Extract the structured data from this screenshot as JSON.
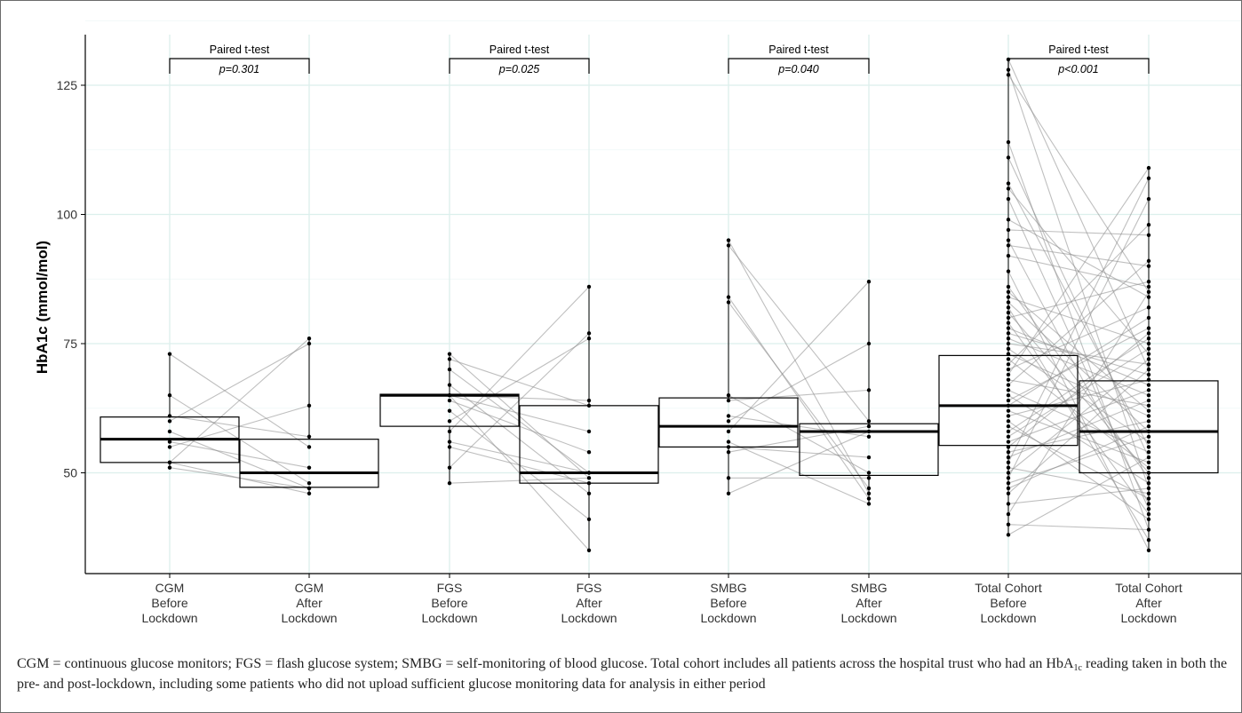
{
  "chart_data": {
    "type": "box",
    "ylabel": "HbA1c (mmol/mol)",
    "ylim": [
      30,
      135
    ],
    "yticks": [
      50,
      75,
      100,
      125
    ],
    "grid": true,
    "categories": [
      {
        "lines": [
          "CGM",
          "Before",
          "Lockdown"
        ]
      },
      {
        "lines": [
          "CGM",
          "After",
          "Lockdown"
        ]
      },
      {
        "lines": [
          "FGS",
          "Before",
          "Lockdown"
        ]
      },
      {
        "lines": [
          "FGS",
          "After",
          "Lockdown"
        ]
      },
      {
        "lines": [
          "SMBG",
          "Before",
          "Lockdown"
        ]
      },
      {
        "lines": [
          "SMBG",
          "After",
          "Lockdown"
        ]
      },
      {
        "lines": [
          "Total Cohort",
          "Before",
          "Lockdown"
        ]
      },
      {
        "lines": [
          "Total Cohort",
          "After",
          "Lockdown"
        ]
      }
    ],
    "boxes": [
      {
        "q1": 52,
        "median": 56.5,
        "q3": 60.8,
        "low": 51,
        "high": 73
      },
      {
        "q1": 47.2,
        "median": 50,
        "q3": 56.5,
        "low": 46,
        "high": 76
      },
      {
        "q1": 59,
        "median": 65,
        "q3": 65.2,
        "low": 48,
        "high": 73
      },
      {
        "q1": 48,
        "median": 50,
        "q3": 63,
        "low": 35,
        "high": 86
      },
      {
        "q1": 55,
        "median": 59,
        "q3": 64.5,
        "low": 46,
        "high": 95
      },
      {
        "q1": 49.5,
        "median": 58,
        "q3": 59.5,
        "low": 44,
        "high": 87
      },
      {
        "q1": 55.3,
        "median": 63,
        "q3": 72.7,
        "low": 38,
        "high": 130
      },
      {
        "q1": 50,
        "median": 58,
        "q3": 67.8,
        "low": 35,
        "high": 109
      }
    ],
    "points": [
      [
        73,
        65,
        61,
        60,
        58,
        56,
        55,
        52,
        52,
        51
      ],
      [
        76,
        75,
        63,
        57,
        55,
        51,
        48,
        47,
        47,
        46
      ],
      [
        73,
        72,
        70,
        67,
        65,
        65,
        65,
        64,
        62,
        60,
        58,
        56,
        55,
        51,
        48
      ],
      [
        86,
        77,
        76,
        64,
        63,
        58,
        54,
        50,
        50,
        49,
        48,
        46,
        41,
        35
      ],
      [
        95,
        94,
        84,
        83,
        65,
        64,
        61,
        60,
        58,
        56,
        55,
        54,
        49,
        46
      ],
      [
        87,
        75,
        66,
        60,
        59,
        58,
        57,
        53,
        50,
        49,
        47,
        46,
        45,
        44
      ],
      [
        130,
        128,
        127,
        114,
        111,
        106,
        105,
        103,
        99,
        97,
        95,
        94,
        92,
        89,
        86,
        85,
        84,
        83,
        82,
        81,
        80,
        79,
        78,
        77,
        76,
        75,
        74,
        73,
        72,
        71,
        70,
        69,
        68,
        67,
        66,
        65,
        64,
        63,
        62,
        61,
        60,
        59,
        58,
        57,
        56,
        55,
        54,
        53,
        52,
        51,
        50,
        49,
        48,
        47,
        46,
        44,
        42,
        40,
        38
      ],
      [
        109,
        107,
        103,
        98,
        96,
        91,
        90,
        87,
        86,
        85,
        84,
        82,
        80,
        78,
        77,
        76,
        75,
        74,
        73,
        72,
        71,
        70,
        69,
        68,
        67,
        66,
        65,
        64,
        63,
        62,
        61,
        60,
        59,
        58,
        57,
        56,
        55,
        54,
        53,
        52,
        51,
        50,
        49,
        48,
        47,
        46,
        45,
        44,
        43,
        42,
        41,
        39,
        37,
        35
      ]
    ],
    "tests": [
      {
        "label": "Paired t-test",
        "p": "p=0.301",
        "pair": [
          0,
          1
        ]
      },
      {
        "label": "Paired t-test",
        "p": "p=0.025",
        "pair": [
          2,
          3
        ]
      },
      {
        "label": "Paired t-test",
        "p": "p=0.040",
        "pair": [
          4,
          5
        ]
      },
      {
        "label": "Paired t-test",
        "p": "p<0.001",
        "pair": [
          6,
          7
        ]
      }
    ]
  },
  "caption": {
    "part1": "CGM = continuous glucose monitors; FGS = flash glucose system; SMBG = self-monitoring of blood glucose. Total cohort includes all patients across the hospital trust who had an HbA",
    "sub": "1c",
    "part2": " reading taken in both the pre- and post-lockdown, including some patients who did not upload sufficient glucose monitoring data for analysis in either period"
  }
}
